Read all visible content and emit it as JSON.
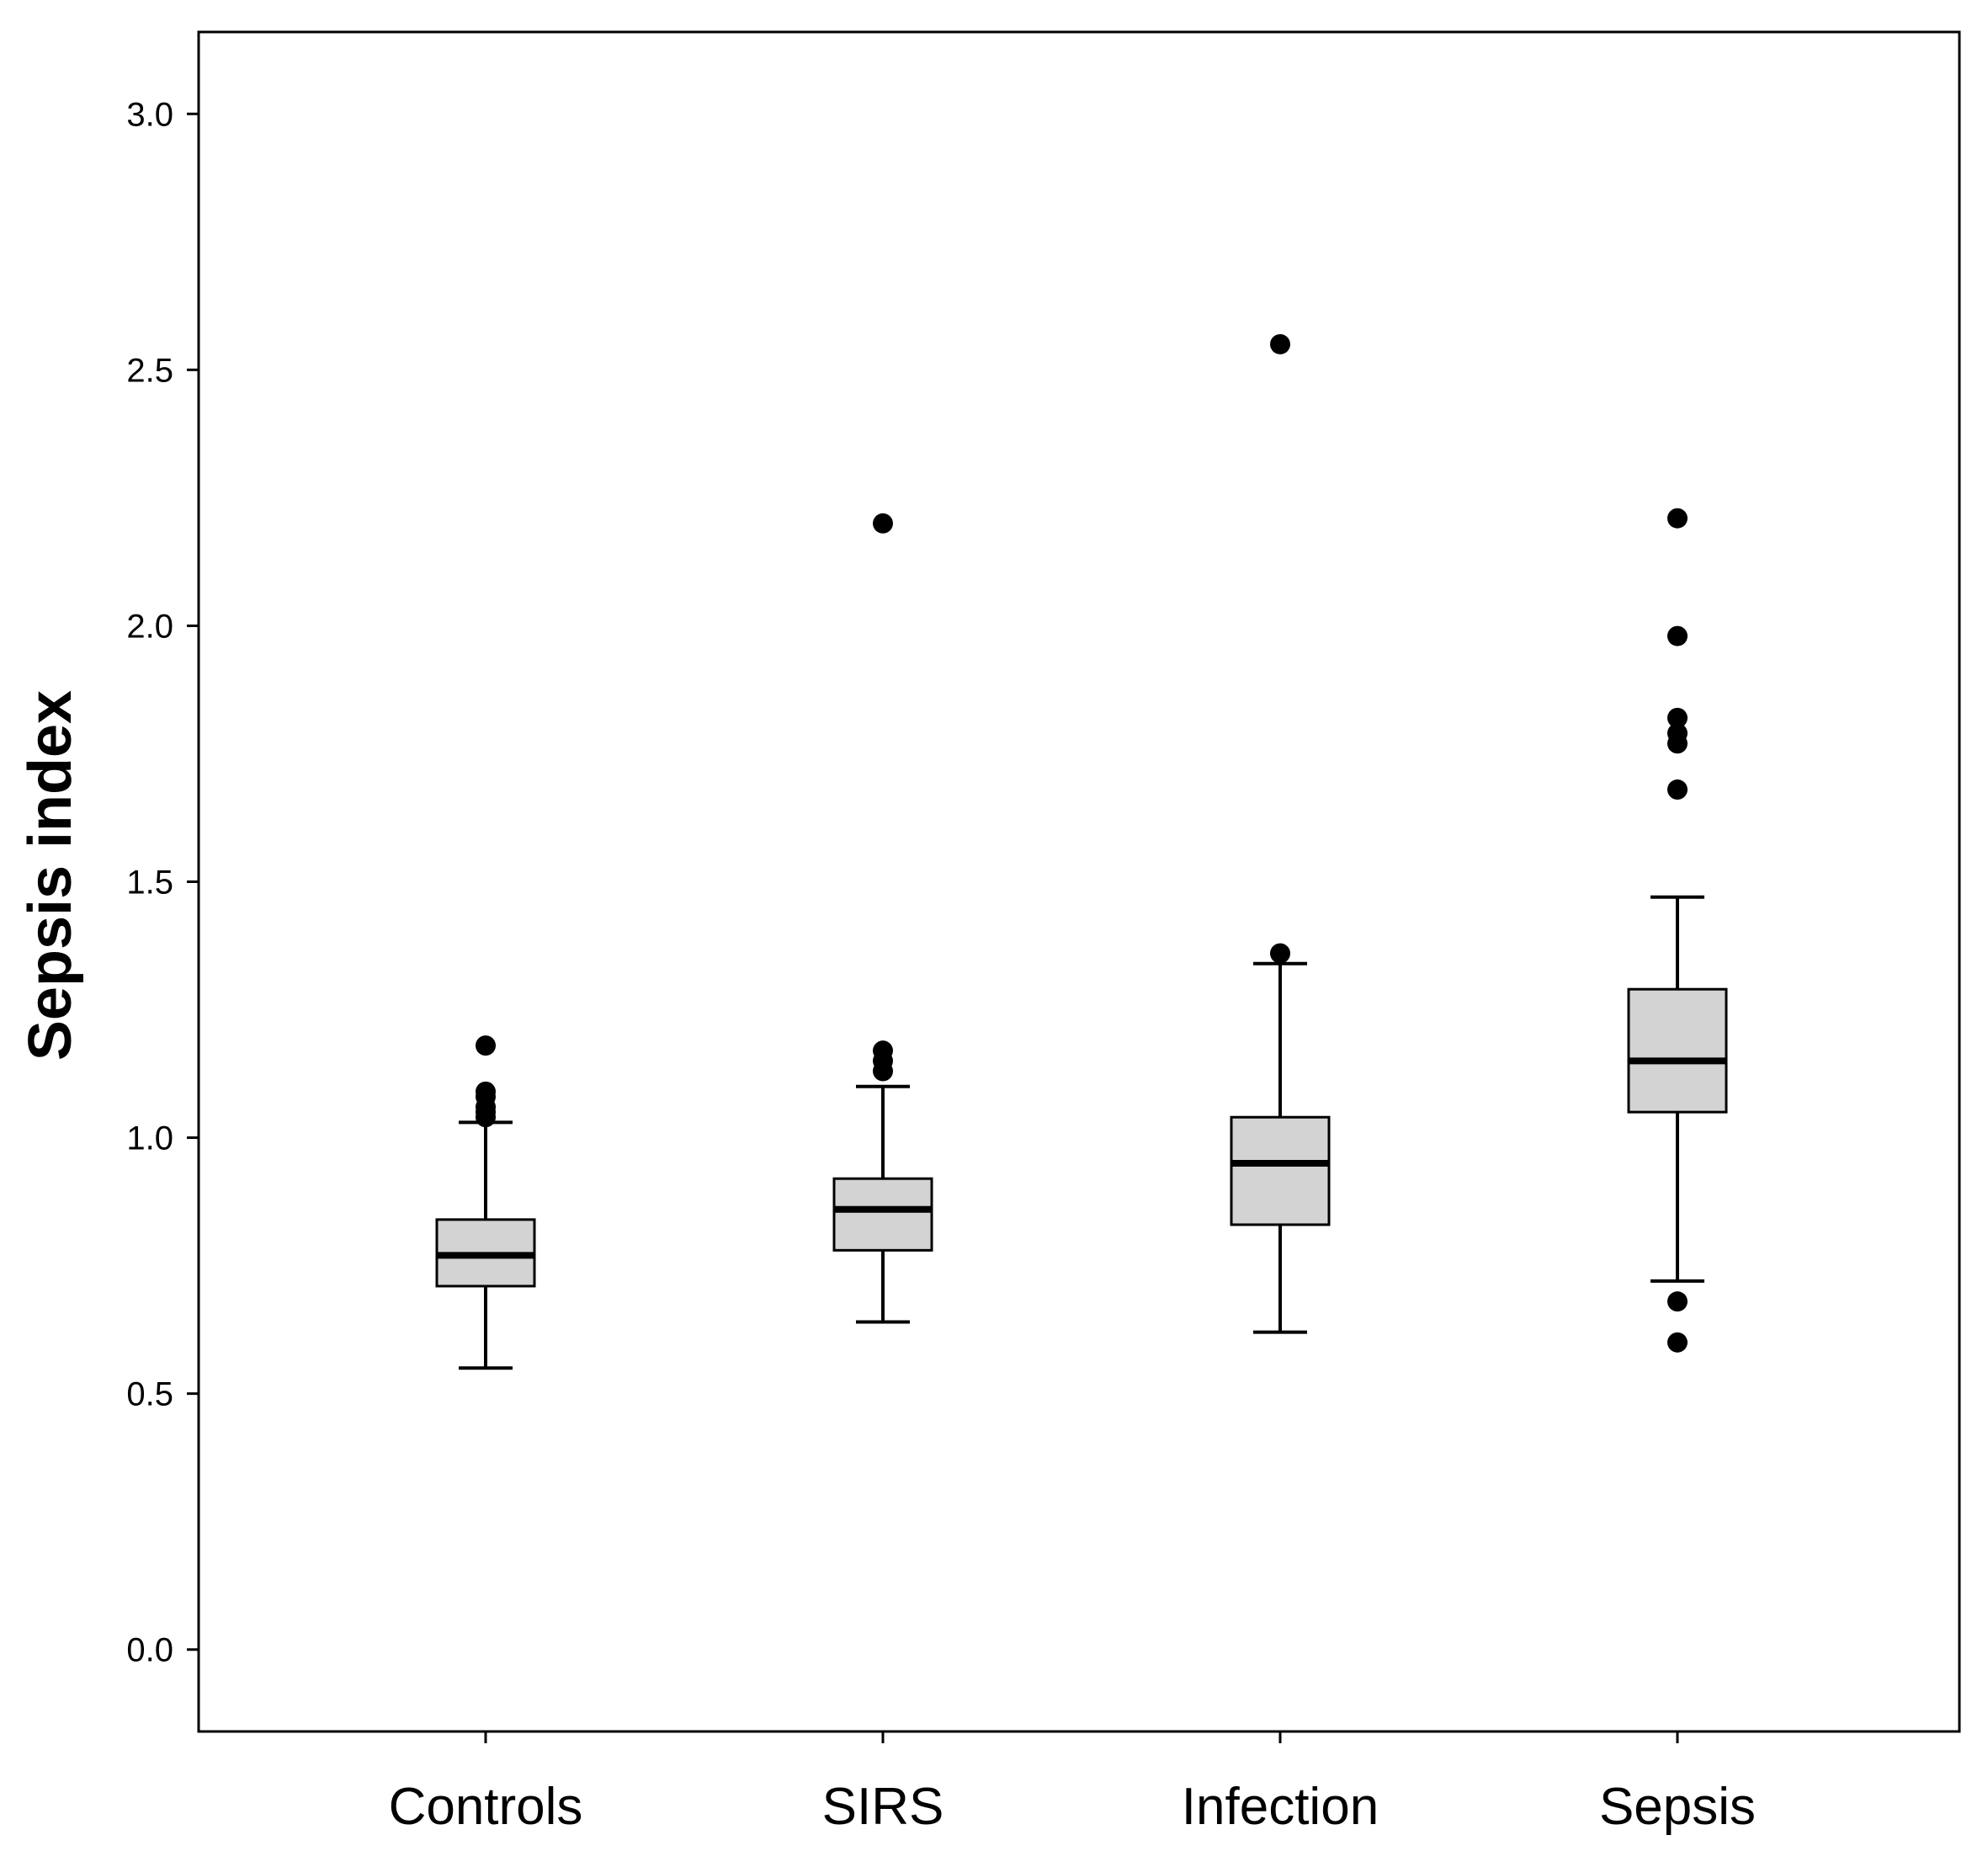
{
  "chart_data": {
    "type": "box",
    "title": "",
    "xlabel": "",
    "ylabel": "Sepsis index",
    "ylim": [
      -0.16,
      3.16
    ],
    "yticks": [
      "0.0",
      "0.5",
      "1.0",
      "1.5",
      "2.0",
      "2.5",
      "3.0"
    ],
    "grid": false,
    "legend": "none",
    "box_fill": "#d3d3d3",
    "stroke_color": "#000000",
    "categories": [
      "Controls",
      "SIRS",
      "Infection",
      "Sepsis"
    ],
    "boxes": [
      {
        "category": "Controls",
        "whisker_low": 0.55,
        "q1": 0.71,
        "median": 0.77,
        "q3": 0.84,
        "whisker_high": 1.03,
        "outliers": [
          1.04,
          1.05,
          1.06,
          1.08,
          1.09,
          1.18
        ]
      },
      {
        "category": "SIRS",
        "whisker_low": 0.64,
        "q1": 0.78,
        "median": 0.86,
        "q3": 0.92,
        "whisker_high": 1.1,
        "outliers": [
          1.13,
          1.15,
          1.17,
          2.2
        ]
      },
      {
        "category": "Infection",
        "whisker_low": 0.62,
        "q1": 0.83,
        "median": 0.95,
        "q3": 1.04,
        "whisker_high": 1.34,
        "outliers": [
          1.36,
          2.55
        ]
      },
      {
        "category": "Sepsis",
        "whisker_low": 0.72,
        "q1": 1.05,
        "median": 1.15,
        "q3": 1.29,
        "whisker_high": 1.47,
        "outliers": [
          0.6,
          0.68,
          1.68,
          1.77,
          1.79,
          1.82,
          1.98,
          2.21
        ]
      }
    ]
  }
}
